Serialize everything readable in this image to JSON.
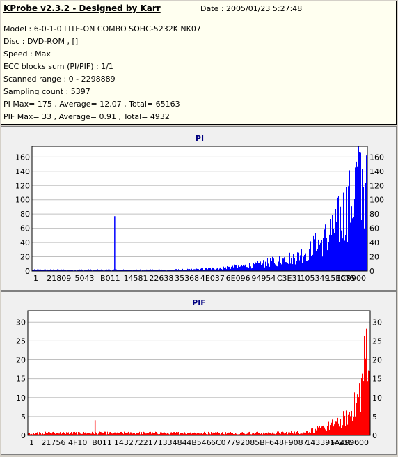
{
  "app": {
    "title": "KProbe v2.3.2 - Designed by Karr",
    "date": "Date : 2005/01/23 5:27:48"
  },
  "info_lines": [
    "Model : 6-0-1-0 LITE-ON COMBO SOHC-5232K NK07",
    "Disc : DVD-ROM ,  []",
    "Speed : Max",
    "ECC blocks sum (PI/PIF) : 1/1",
    "Scanned range : 0 - 2298889",
    "Sampling count : 5397",
    "PI Max= 175 , Average= 12.07 , Total= 65163",
    "PIF Max= 33 , Average= 0.91 , Total= 4932"
  ],
  "colors": {
    "pi": "#0000ff",
    "pif": "#ff0000",
    "grid": "#c0c0c0",
    "plot_bg": "#ffffff"
  },
  "chart_data": [
    {
      "type": "bar",
      "title": "PI",
      "ylim": [
        0,
        175
      ],
      "yticks": [
        0,
        20,
        40,
        60,
        80,
        100,
        120,
        140,
        160
      ],
      "xtick_labels": [
        "1",
        "21809",
        "5043",
        "B011",
        "14581",
        "22638",
        "35368",
        "4E037",
        "6E096",
        "94954",
        "C3E31",
        "105349",
        "15E075",
        "1C9900"
      ],
      "color": "#0000ff",
      "spike": {
        "x": 0.245,
        "value": 77
      },
      "envelope": [
        [
          0.0,
          2
        ],
        [
          0.1,
          2
        ],
        [
          0.2,
          2
        ],
        [
          0.3,
          2
        ],
        [
          0.4,
          2
        ],
        [
          0.5,
          3
        ],
        [
          0.55,
          5
        ],
        [
          0.6,
          7
        ],
        [
          0.65,
          10
        ],
        [
          0.7,
          14
        ],
        [
          0.75,
          20
        ],
        [
          0.8,
          28
        ],
        [
          0.85,
          45
        ],
        [
          0.88,
          60
        ],
        [
          0.9,
          75
        ],
        [
          0.92,
          90
        ],
        [
          0.94,
          110
        ],
        [
          0.96,
          140
        ],
        [
          0.98,
          165
        ],
        [
          1.0,
          150
        ]
      ]
    },
    {
      "type": "bar",
      "title": "PIF",
      "ylim": [
        0,
        33
      ],
      "yticks": [
        0,
        5,
        10,
        15,
        20,
        25,
        30
      ],
      "xtick_labels": [
        "1",
        "21756",
        "4F10",
        "B011",
        "14327",
        "22171",
        "33484",
        "4B546",
        "6C077",
        "92085",
        "BF648",
        "F9087",
        "143396",
        "1A4996",
        "21D000"
      ],
      "color": "#ff0000",
      "spike": {
        "x": 0.195,
        "value": 4
      },
      "envelope": [
        [
          0.0,
          0.8
        ],
        [
          0.7,
          0.8
        ],
        [
          0.8,
          1
        ],
        [
          0.85,
          2
        ],
        [
          0.88,
          3
        ],
        [
          0.9,
          4
        ],
        [
          0.92,
          5
        ],
        [
          0.94,
          7
        ],
        [
          0.96,
          10
        ],
        [
          0.98,
          18
        ],
        [
          0.99,
          30
        ],
        [
          1.0,
          22
        ]
      ]
    }
  ]
}
